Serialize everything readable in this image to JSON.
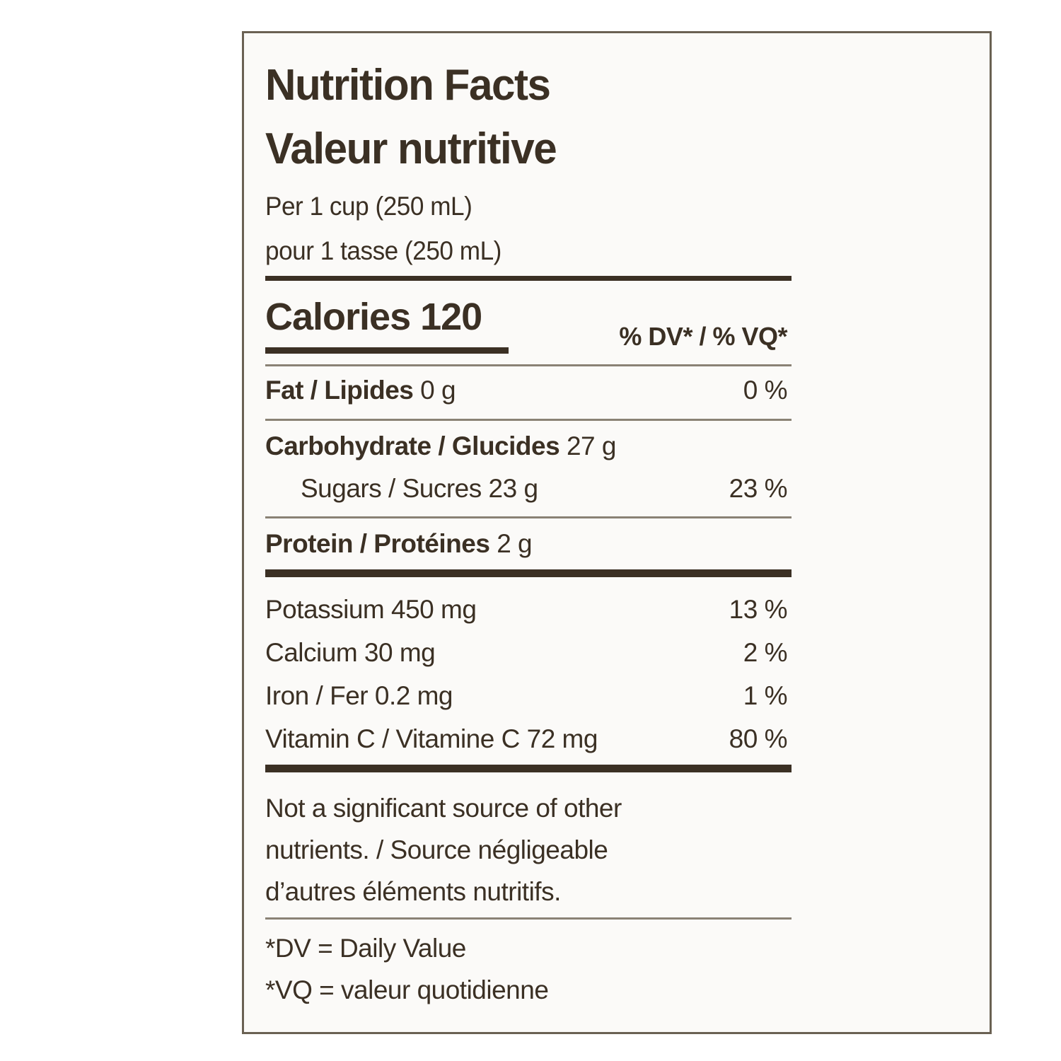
{
  "label": {
    "title_en": "Nutrition Facts",
    "title_fr": "Valeur nutritive",
    "serving_en": "Per 1 cup (250 mL)",
    "serving_fr": "pour 1 tasse (250 mL)",
    "calories_label": "Calories 120",
    "dv_header": "% DV* / % VQ*",
    "fat": {
      "name": "Fat / Lipides",
      "amount": "0 g",
      "dv": "0 %"
    },
    "carb": {
      "name": "Carbohydrate / Glucides",
      "amount": "27 g"
    },
    "sugars": {
      "name": "Sugars / Sucres",
      "amount": "23 g",
      "dv": "23 %"
    },
    "protein": {
      "name": "Protein / Protéines",
      "amount": "2 g"
    },
    "potassium": {
      "name": "Potassium 450 mg",
      "dv": "13 %"
    },
    "calcium": {
      "name": "Calcium 30 mg",
      "dv": "2 %"
    },
    "iron": {
      "name": "Iron / Fer 0.2 mg",
      "dv": "1 %"
    },
    "vitc": {
      "name": "Vitamin C / Vitamine C 72 mg",
      "dv": "80 %"
    },
    "note_line1": "Not a significant source of other",
    "note_line2": "nutrients. / Source négligeable",
    "note_line3": "d’autres éléments nutritifs.",
    "dv_def": "*DV = Daily Value",
    "vq_def": "*VQ = valeur quotidienne"
  }
}
